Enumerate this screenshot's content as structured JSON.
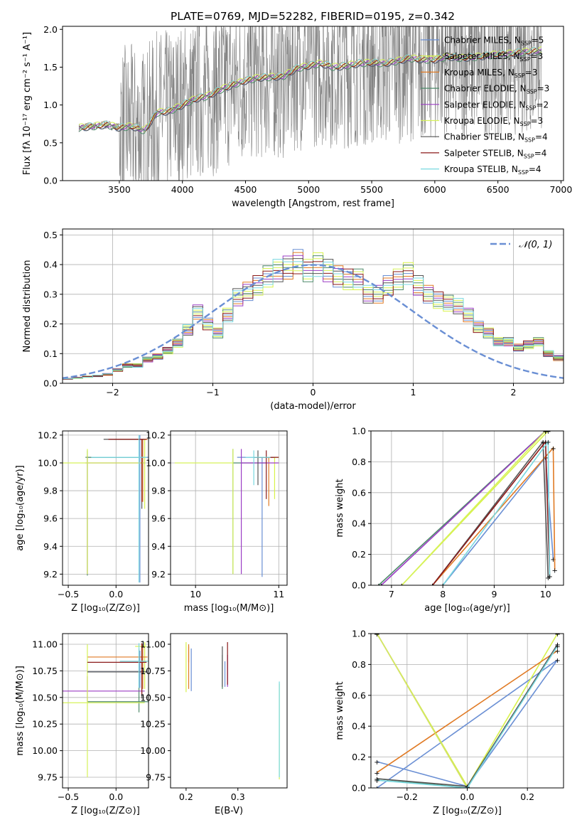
{
  "figure": {
    "title": "PLATE=0769, MJD=52282, FIBERID=0195, z=0.342"
  },
  "chart_data": [
    {
      "type": "line",
      "panel": "spectrum",
      "xlabel": "wavelength [Angstrom, rest frame]",
      "ylabel": "Flux [fλ 10⁻¹⁷ erg cm⁻² s⁻¹ A⁻¹]",
      "xlim": [
        3050,
        7020
      ],
      "ylim": [
        0.0,
        2.04
      ],
      "xticks": [
        3500,
        4000,
        4500,
        5000,
        5500,
        6000,
        6500,
        7000
      ],
      "yticks": [
        0.0,
        0.5,
        1.0,
        1.5,
        2.0
      ],
      "grid": false,
      "legend_position": "top-right",
      "data_color": "#808080",
      "continuum": {
        "x": [
          3180,
          3300,
          3400,
          3500,
          3600,
          3700,
          3800,
          3900,
          4000,
          4100,
          4200,
          4300,
          4400,
          4500,
          4600,
          4700,
          4800,
          4900,
          5000,
          5100,
          5200,
          5300,
          5400,
          5500,
          5600,
          5700,
          5800,
          5900,
          6000,
          6100,
          6200,
          6300,
          6400,
          6500,
          6600,
          6700,
          6850
        ],
        "y": [
          0.7,
          0.72,
          0.74,
          0.7,
          0.72,
          0.66,
          0.9,
          0.92,
          1.0,
          1.08,
          1.12,
          1.2,
          1.27,
          1.32,
          1.36,
          1.37,
          1.38,
          1.48,
          1.52,
          1.55,
          1.5,
          1.52,
          1.55,
          1.56,
          1.55,
          1.58,
          1.62,
          1.6,
          1.6,
          1.64,
          1.62,
          1.63,
          1.65,
          1.67,
          1.68,
          1.7,
          1.72
        ]
      },
      "series": [
        {
          "name": "Chabrier MILES",
          "nssp": "5",
          "color": "#6A8FD4"
        },
        {
          "name": "Salpeter MILES",
          "nssp": "3",
          "color": "#D8F24A"
        },
        {
          "name": "Kroupa MILES",
          "nssp": "3",
          "color": "#E07A24"
        },
        {
          "name": "Chabrier ELODIE",
          "nssp": "3",
          "color": "#4E8A6A"
        },
        {
          "name": "Salpeter ELODIE",
          "nssp": "2",
          "color": "#9B3DC4"
        },
        {
          "name": "Kroupa ELODIE",
          "nssp": "3",
          "color": "#D6F25A"
        },
        {
          "name": "Chabrier STELIB",
          "nssp": "4",
          "color": "#555555"
        },
        {
          "name": "Salpeter STELIB",
          "nssp": "4",
          "color": "#8B1A1A"
        },
        {
          "name": "Kroupa STELIB",
          "nssp": "4",
          "color": "#78D8E0"
        }
      ]
    },
    {
      "type": "bar",
      "panel": "residual-histogram",
      "xlabel": "(data-model)/error",
      "ylabel": "Normed distribution",
      "xlim": [
        -2.5,
        2.5
      ],
      "ylim": [
        0.0,
        0.52
      ],
      "xticks": [
        -2,
        -1,
        0,
        1,
        2
      ],
      "yticks": [
        0.0,
        0.1,
        0.2,
        0.3,
        0.4,
        0.5
      ],
      "grid": true,
      "legend_position": "top-right",
      "bin_width": 0.1,
      "bin_start": -2.5,
      "reference_curve": {
        "name": "𝒩(0, 1)",
        "color": "#6A8FD4"
      },
      "values": [
        0.015,
        0.018,
        0.022,
        0.025,
        0.03,
        0.045,
        0.06,
        0.06,
        0.08,
        0.09,
        0.11,
        0.135,
        0.18,
        0.24,
        0.2,
        0.17,
        0.23,
        0.29,
        0.31,
        0.33,
        0.36,
        0.38,
        0.39,
        0.41,
        0.38,
        0.4,
        0.38,
        0.36,
        0.35,
        0.35,
        0.3,
        0.3,
        0.33,
        0.35,
        0.37,
        0.33,
        0.3,
        0.28,
        0.27,
        0.26,
        0.23,
        0.19,
        0.17,
        0.14,
        0.14,
        0.12,
        0.13,
        0.14,
        0.1,
        0.085,
        0.07,
        0.06,
        0.055,
        0.05,
        0.045,
        0.04,
        0.035,
        0.03,
        0.025,
        0.02
      ]
    },
    {
      "type": "scatter",
      "panel": "age-vs-metallicity",
      "xlabel": "Z [log₁₀(Z/Z⊙)]",
      "ylabel": "age  [log₁₀(age/yr)]",
      "xlim": [
        -0.56,
        0.34
      ],
      "ylim": [
        9.12,
        10.23
      ],
      "xticks": [
        -0.5,
        0.0
      ],
      "yticks": [
        9.2,
        9.4,
        9.6,
        9.8,
        10.0,
        10.2
      ],
      "grid": true
    },
    {
      "type": "scatter",
      "panel": "age-vs-mass",
      "xlabel": "mass [log₁₀(M/M⊙)]",
      "ylabel": "",
      "xlim": [
        9.7,
        11.1
      ],
      "ylim": [
        9.12,
        10.23
      ],
      "xticks": [
        10,
        11
      ],
      "yticks": [
        9.2,
        9.4,
        9.6,
        9.8,
        10.0,
        10.2
      ],
      "grid": true
    },
    {
      "type": "line",
      "panel": "mass-weight-vs-age",
      "xlabel": "age  [log₁₀(age/yr)]",
      "ylabel": "mass weight",
      "xlim": [
        6.6,
        10.35
      ],
      "ylim": [
        0.0,
        1.0
      ],
      "xticks": [
        7,
        8,
        9,
        10
      ],
      "yticks": [
        0.0,
        0.2,
        0.4,
        0.6,
        0.8,
        1.0
      ],
      "grid": true
    },
    {
      "type": "scatter",
      "panel": "mass-vs-metallicity",
      "xlabel": "Z [log₁₀(Z/Z⊙)]",
      "ylabel": "mass [log₁₀(M/M⊙)]",
      "xlim": [
        -0.56,
        0.34
      ],
      "ylim": [
        9.65,
        11.1
      ],
      "xticks": [
        -0.5,
        0.0
      ],
      "yticks": [
        9.75,
        10.0,
        10.25,
        10.5,
        10.75,
        11.0
      ],
      "grid": true
    },
    {
      "type": "scatter",
      "panel": "mass-vs-extinction",
      "xlabel": "E(B-V)",
      "ylabel": "",
      "xlim": [
        0.17,
        0.395
      ],
      "ylim": [
        9.65,
        11.1
      ],
      "xticks": [
        0.2,
        0.3
      ],
      "yticks": [
        9.75,
        10.0,
        10.25,
        10.5,
        10.75,
        11.0
      ],
      "grid": false
    },
    {
      "type": "line",
      "panel": "mass-weight-vs-metallicity",
      "xlabel": "Z [log₁₀(Z/Z⊙)]",
      "ylabel": "mass weight",
      "xlim": [
        -0.32,
        0.32
      ],
      "ylim": [
        0.0,
        1.0
      ],
      "xticks": [
        -0.2,
        0.0,
        0.2
      ],
      "yticks": [
        0.0,
        0.2,
        0.4,
        0.6,
        0.8,
        1.0
      ],
      "grid": true
    }
  ]
}
